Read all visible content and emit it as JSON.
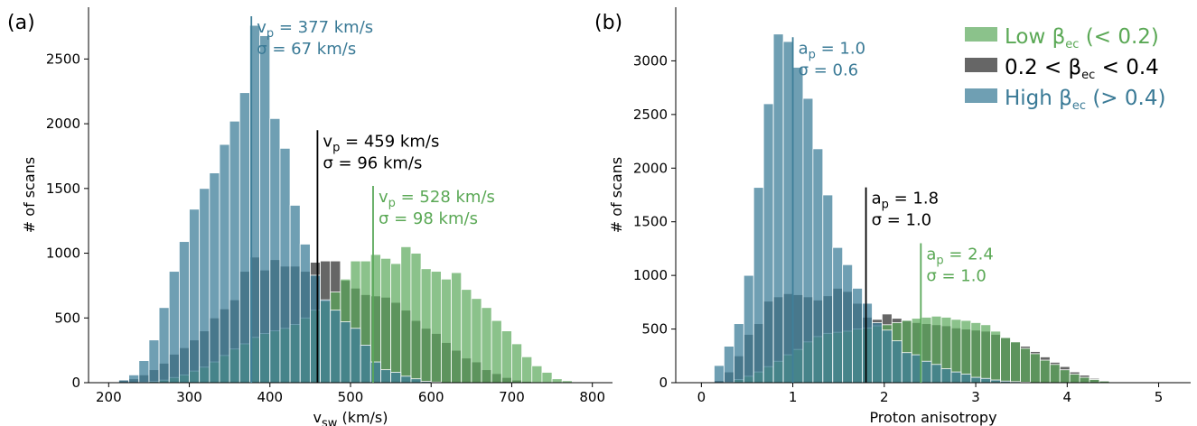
{
  "colors": {
    "low": "#5aa85a",
    "mid": "#404040",
    "high": "#3f7f99",
    "low_text": "#5aa855",
    "high_text": "#3a7a96"
  },
  "legend": [
    {
      "label": "Low β",
      "sub": "ec",
      "suffix": " (< 0.2)",
      "key": "low"
    },
    {
      "label": "0.2 < β",
      "sub": "ec",
      "suffix": " < 0.4",
      "key": "mid"
    },
    {
      "label": "High β",
      "sub": "ec",
      "suffix": " (> 0.4)",
      "key": "high"
    }
  ],
  "chart_data": [
    {
      "type": "bar",
      "panel_label": "(a)",
      "xlabel": "v",
      "xlabel_sub": "sw",
      "xlabel_suffix": " (km/s)",
      "ylabel": "# of scans",
      "xlim": [
        175,
        825
      ],
      "ylim": [
        0,
        2900
      ],
      "xticks": [
        200,
        300,
        400,
        500,
        600,
        700,
        800
      ],
      "yticks": [
        0,
        500,
        1000,
        1500,
        2000,
        2500
      ],
      "bin_start": 212.5,
      "bin_width": 12.5,
      "series": [
        {
          "name": "Low β_ec (< 0.2)",
          "key": "low",
          "values": [
            0,
            0,
            5,
            10,
            20,
            40,
            60,
            90,
            120,
            160,
            210,
            260,
            300,
            350,
            380,
            400,
            420,
            450,
            500,
            560,
            630,
            700,
            800,
            940,
            940,
            990,
            960,
            920,
            1050,
            1000,
            880,
            860,
            800,
            850,
            720,
            650,
            580,
            480,
            400,
            300,
            200,
            130,
            80,
            30,
            15,
            5,
            0,
            0
          ]
        },
        {
          "name": "0.2 < β_ec < 0.4",
          "key": "mid",
          "values": [
            20,
            30,
            60,
            100,
            150,
            220,
            270,
            330,
            400,
            500,
            570,
            640,
            860,
            970,
            870,
            950,
            900,
            900,
            860,
            930,
            940,
            940,
            790,
            730,
            680,
            670,
            660,
            620,
            560,
            480,
            420,
            380,
            310,
            250,
            190,
            160,
            100,
            70,
            40,
            20,
            10,
            0,
            0,
            0,
            0,
            0,
            0,
            0
          ]
        },
        {
          "name": "High β_ec (> 0.4)",
          "key": "high",
          "values": [
            20,
            60,
            170,
            330,
            580,
            860,
            1090,
            1340,
            1500,
            1620,
            1840,
            2020,
            2240,
            2760,
            2680,
            2040,
            1810,
            1370,
            1070,
            830,
            640,
            560,
            470,
            420,
            290,
            160,
            100,
            80,
            50,
            30,
            10,
            5,
            0,
            0,
            0,
            0,
            0,
            0,
            0,
            0,
            0,
            0,
            0,
            0,
            0,
            0,
            0,
            0
          ]
        }
      ],
      "annotations": [
        {
          "key": "high",
          "value": 377,
          "line_top": 2830,
          "line1_prefix": "v",
          "line1_sub": "p",
          "line1_suffix": " = 377 km/s",
          "line2": "σ = 67 km/s"
        },
        {
          "key": "mid",
          "value": 459,
          "line_top": 1950,
          "line1_prefix": "v",
          "line1_sub": "p",
          "line1_suffix": " = 459 km/s",
          "line2": "σ = 96 km/s"
        },
        {
          "key": "low",
          "value": 528,
          "line_top": 1520,
          "line1_prefix": "v",
          "line1_sub": "p",
          "line1_suffix": " = 528 km/s",
          "line2": "σ = 98 km/s"
        }
      ]
    },
    {
      "type": "bar",
      "panel_label": "(b)",
      "xlabel": "Proton anisotropy",
      "xlabel_sub": "",
      "xlabel_suffix": "",
      "ylabel": "# of scans",
      "xlim": [
        -0.28,
        5.35
      ],
      "ylim": [
        0,
        3500
      ],
      "xticks": [
        0,
        1,
        2,
        3,
        4,
        5
      ],
      "yticks": [
        0,
        500,
        1000,
        1500,
        2000,
        2500,
        3000
      ],
      "bin_start": 0.14,
      "bin_width": 0.108,
      "series": [
        {
          "name": "Low β_ec (< 0.2)",
          "key": "low",
          "values": [
            0,
            5,
            30,
            60,
            100,
            150,
            200,
            260,
            310,
            380,
            430,
            460,
            470,
            480,
            500,
            510,
            530,
            540,
            560,
            580,
            600,
            610,
            620,
            610,
            590,
            580,
            560,
            540,
            480,
            420,
            380,
            320,
            270,
            210,
            170,
            120,
            80,
            50,
            30,
            15,
            5,
            0,
            0,
            0,
            0,
            0
          ]
        },
        {
          "name": "0.2 < β_ec < 0.4",
          "key": "mid",
          "values": [
            20,
            100,
            250,
            450,
            550,
            760,
            800,
            830,
            820,
            800,
            770,
            810,
            880,
            850,
            740,
            610,
            590,
            640,
            600,
            580,
            560,
            550,
            540,
            530,
            510,
            500,
            490,
            480,
            450,
            420,
            380,
            340,
            290,
            240,
            190,
            150,
            100,
            70,
            40,
            20,
            10,
            5,
            0,
            0,
            0,
            0
          ]
        },
        {
          "name": "High β_ec (> 0.4)",
          "key": "high",
          "values": [
            160,
            340,
            550,
            1000,
            1820,
            2600,
            3250,
            3180,
            2940,
            2650,
            2180,
            1750,
            1260,
            1100,
            880,
            740,
            560,
            490,
            390,
            280,
            260,
            200,
            170,
            130,
            100,
            80,
            50,
            40,
            25,
            15,
            10,
            5,
            0,
            0,
            0,
            0,
            0,
            0,
            0,
            0,
            0,
            0,
            0,
            0,
            0,
            0
          ]
        }
      ],
      "annotations": [
        {
          "key": "high",
          "value": 1.0,
          "line_top": 3220,
          "line1_prefix": "a",
          "line1_sub": "p",
          "line1_suffix": " = 1.0",
          "line2": "σ = 0.6"
        },
        {
          "key": "mid",
          "value": 1.8,
          "line_top": 1820,
          "line1_prefix": "a",
          "line1_sub": "p",
          "line1_suffix": " = 1.8",
          "line2": "σ = 1.0"
        },
        {
          "key": "low",
          "value": 2.4,
          "line_top": 1300,
          "line1_prefix": "a",
          "line1_sub": "p",
          "line1_suffix": " = 2.4",
          "line2": "σ = 1.0"
        }
      ]
    }
  ]
}
